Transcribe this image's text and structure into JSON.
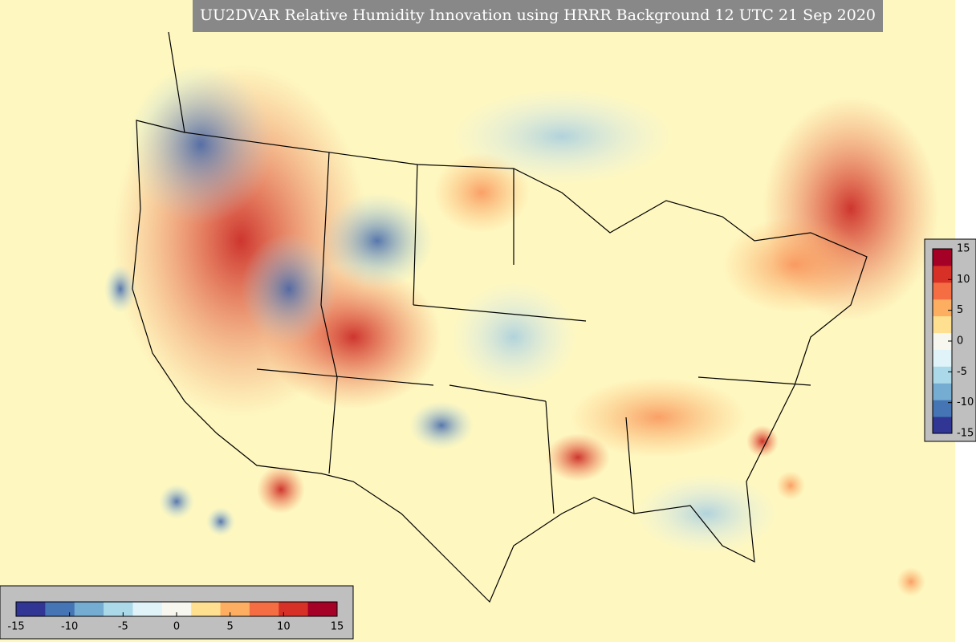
{
  "title": "UU2DVAR Relative Humidity Innovation using HRRR Background 12 UTC 21 Sep 2020",
  "colormap": [
    "#313695",
    "#4575b4",
    "#74add1",
    "#abd9e9",
    "#e0f3f8",
    "#f7f7f0",
    "#fee090",
    "#fdae61",
    "#f46d43",
    "#d73027",
    "#a50026"
  ],
  "colorbars": [
    {
      "orientation": "vertical",
      "lim": [
        -15,
        15
      ],
      "ticks": [
        -15,
        -10,
        -5,
        0,
        5,
        10,
        15
      ]
    },
    {
      "orientation": "horizontal",
      "lim": [
        -15,
        15
      ],
      "ticks": [
        -15,
        -10,
        -5,
        0,
        5,
        10,
        15
      ]
    }
  ]
}
